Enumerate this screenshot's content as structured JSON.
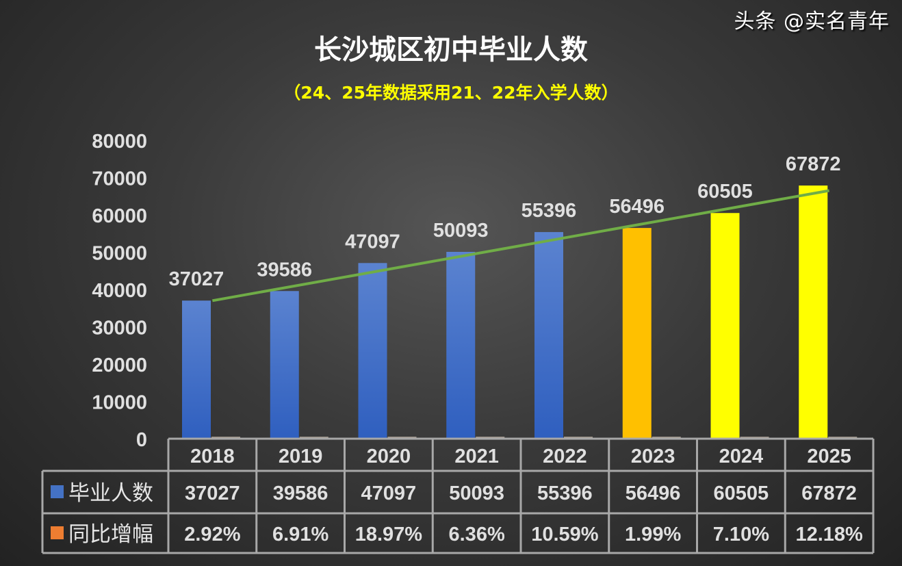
{
  "chart_data": {
    "type": "bar",
    "title": "长沙城区初中毕业人数",
    "subtitle": "（24、25年数据采用21、22年入学人数）",
    "categories": [
      "2018",
      "2019",
      "2020",
      "2021",
      "2022",
      "2023",
      "2024",
      "2025"
    ],
    "series": [
      {
        "name": "毕业人数",
        "values": [
          37027,
          39586,
          47097,
          50093,
          55396,
          56496,
          60505,
          67872
        ],
        "color": "#4472c4",
        "point_colors": [
          "#4472c4",
          "#4472c4",
          "#4472c4",
          "#4472c4",
          "#4472c4",
          "#ffc000",
          "#ffff00",
          "#ffff00"
        ]
      },
      {
        "name": "同比增幅",
        "values": [
          "2.92%",
          "6.91%",
          "18.97%",
          "6.36%",
          "10.59%",
          "1.99%",
          "7.10%",
          "12.18%"
        ],
        "color": "#ed7d31"
      }
    ],
    "trendline": {
      "type": "linear",
      "color": "#70ad47"
    },
    "ylim": [
      0,
      80000
    ],
    "yticks": [
      0,
      10000,
      20000,
      30000,
      40000,
      50000,
      60000,
      70000,
      80000
    ],
    "data_table": true,
    "grid": false
  },
  "watermark": "头条 @实名青年"
}
